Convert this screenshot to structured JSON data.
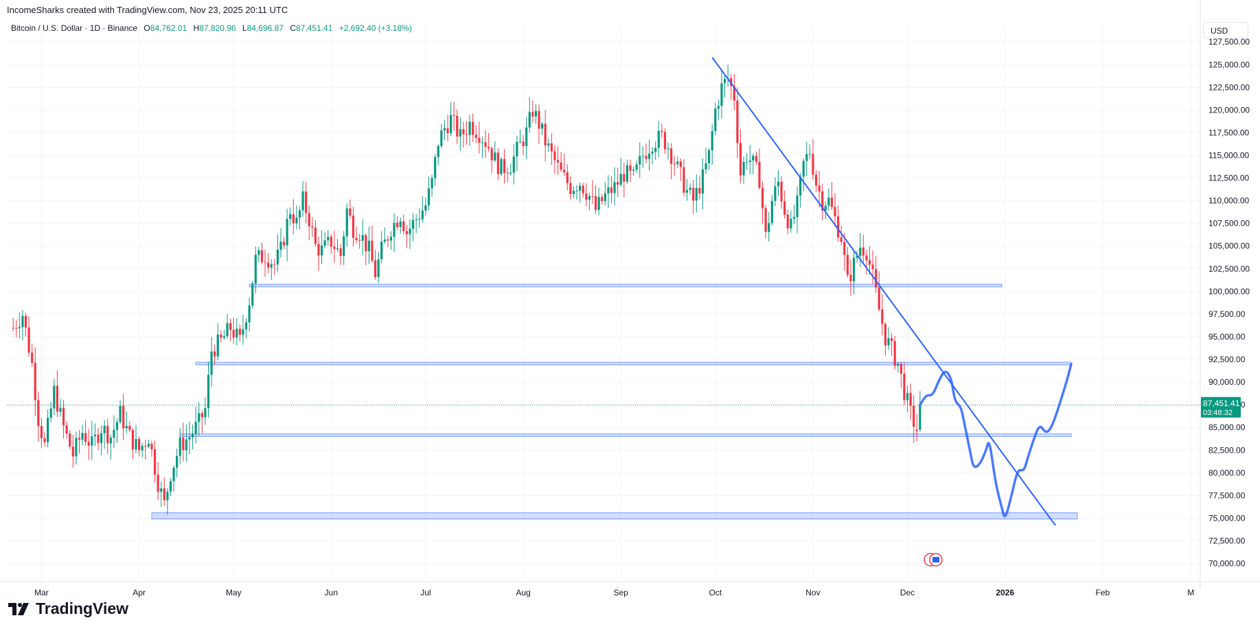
{
  "header": {
    "published_by": "IncomeSharks created with TradingView.com, Nov 23, 2025 20:11 UTC"
  },
  "legend": {
    "symbol": "Bitcoin / U.S. Dollar · 1D · Binance",
    "open_label": "O",
    "open": "84,762.01",
    "high_label": "H",
    "high": "87,820.96",
    "low_label": "L",
    "low": "84,696.87",
    "close_label": "C",
    "close": "87,451.41",
    "change": "+2,692.40 (+3.18%)"
  },
  "currency_button": "USD",
  "brand": {
    "name": "TradingView",
    "icon": "tradingview-logo-icon"
  },
  "colors": {
    "up": "#089981",
    "down": "#F23645",
    "drawing": "#2962FF",
    "zone": "#2962FF"
  },
  "chart_data": {
    "type": "candlestick",
    "title": "Bitcoin / U.S. Dollar · 1D · Binance",
    "ylim": [
      68000,
      128500
    ],
    "y_ticks": [
      "127,500.00",
      "125,000.00",
      "122,500.00",
      "120,000.00",
      "117,500.00",
      "115,000.00",
      "112,500.00",
      "110,000.00",
      "107,500.00",
      "105,000.00",
      "102,500.00",
      "100,000.00",
      "97,500.00",
      "95,000.00",
      "92,500.00",
      "90,000.00",
      "87,500.00",
      "85,000.00",
      "82,500.00",
      "80,000.00",
      "77,500.00",
      "75,000.00",
      "72,500.00",
      "70,000.00"
    ],
    "y_tick_values": [
      127500,
      125000,
      122500,
      120000,
      117500,
      115000,
      112500,
      110000,
      107500,
      105000,
      102500,
      100000,
      97500,
      95000,
      92500,
      90000,
      87500,
      85000,
      82500,
      80000,
      77500,
      75000,
      72500,
      70000
    ],
    "x_ticks": [
      {
        "label": "Mar",
        "day": 9,
        "bold": false
      },
      {
        "label": "Apr",
        "day": 40,
        "bold": false
      },
      {
        "label": "May",
        "day": 70,
        "bold": false
      },
      {
        "label": "Jun",
        "day": 101,
        "bold": false
      },
      {
        "label": "Jul",
        "day": 131,
        "bold": false
      },
      {
        "label": "Aug",
        "day": 162,
        "bold": false
      },
      {
        "label": "Sep",
        "day": 193,
        "bold": false
      },
      {
        "label": "Oct",
        "day": 223,
        "bold": false
      },
      {
        "label": "Nov",
        "day": 254,
        "bold": false
      },
      {
        "label": "Dec",
        "day": 284,
        "bold": false
      },
      {
        "label": "2026",
        "day": 315,
        "bold": true
      },
      {
        "label": "Feb",
        "day": 346,
        "bold": false
      },
      {
        "label": "M",
        "day": 374,
        "bold": false
      }
    ],
    "x_range": [
      -2,
      377
    ],
    "price_anchors": [
      [
        0,
        96000
      ],
      [
        3,
        97500
      ],
      [
        6,
        92000
      ],
      [
        8,
        86000
      ],
      [
        10,
        83000
      ],
      [
        13,
        89000
      ],
      [
        16,
        85000
      ],
      [
        19,
        82000
      ],
      [
        22,
        84500
      ],
      [
        25,
        83000
      ],
      [
        28,
        85000
      ],
      [
        31,
        84000
      ],
      [
        34,
        86500
      ],
      [
        37,
        84000
      ],
      [
        40,
        82500
      ],
      [
        43,
        84000
      ],
      [
        46,
        79000
      ],
      [
        48,
        76500
      ],
      [
        50,
        80000
      ],
      [
        53,
        83000
      ],
      [
        56,
        84000
      ],
      [
        59,
        85500
      ],
      [
        61,
        87000
      ],
      [
        63,
        93500
      ],
      [
        66,
        94500
      ],
      [
        69,
        96000
      ],
      [
        72,
        94500
      ],
      [
        75,
        99000
      ],
      [
        77,
        103500
      ],
      [
        80,
        104000
      ],
      [
        83,
        103000
      ],
      [
        85,
        104500
      ],
      [
        88,
        109000
      ],
      [
        90,
        107500
      ],
      [
        92,
        110000
      ],
      [
        94,
        108000
      ],
      [
        96,
        105000
      ],
      [
        98,
        104500
      ],
      [
        101,
        105500
      ],
      [
        104,
        104000
      ],
      [
        106,
        109000
      ],
      [
        108,
        107000
      ],
      [
        110,
        106500
      ],
      [
        113,
        104500
      ],
      [
        115,
        102000
      ],
      [
        117,
        104500
      ],
      [
        120,
        107000
      ],
      [
        123,
        108500
      ],
      [
        125,
        106500
      ],
      [
        128,
        108000
      ],
      [
        131,
        109500
      ],
      [
        133,
        112000
      ],
      [
        135,
        116500
      ],
      [
        137,
        118000
      ],
      [
        139,
        119000
      ],
      [
        142,
        117000
      ],
      [
        145,
        118500
      ],
      [
        148,
        117500
      ],
      [
        151,
        116000
      ],
      [
        153,
        114500
      ],
      [
        155,
        113500
      ],
      [
        158,
        114000
      ],
      [
        160,
        115500
      ],
      [
        163,
        117500
      ],
      [
        165,
        120000
      ],
      [
        167,
        118500
      ],
      [
        169,
        116500
      ],
      [
        171,
        115000
      ],
      [
        174,
        113000
      ],
      [
        177,
        111500
      ],
      [
        180,
        112000
      ],
      [
        183,
        110500
      ],
      [
        185,
        109000
      ],
      [
        188,
        110500
      ],
      [
        191,
        111500
      ],
      [
        194,
        113000
      ],
      [
        197,
        112500
      ],
      [
        200,
        115000
      ],
      [
        203,
        116500
      ],
      [
        206,
        117000
      ],
      [
        208,
        116000
      ],
      [
        211,
        113500
      ],
      [
        214,
        111000
      ],
      [
        216,
        110000
      ],
      [
        219,
        112500
      ],
      [
        221,
        115000
      ],
      [
        223,
        120000
      ],
      [
        225,
        122500
      ],
      [
        227,
        123500
      ],
      [
        229,
        121500
      ],
      [
        231,
        113000
      ],
      [
        233,
        115000
      ],
      [
        235,
        114000
      ],
      [
        237,
        112500
      ],
      [
        239,
        106000
      ],
      [
        241,
        110000
      ],
      [
        243,
        112000
      ],
      [
        245,
        109000
      ],
      [
        247,
        107000
      ],
      [
        249,
        109500
      ],
      [
        251,
        114000
      ],
      [
        253,
        115500
      ],
      [
        255,
        112000
      ],
      [
        257,
        110000
      ],
      [
        259,
        110000
      ],
      [
        261,
        108000
      ],
      [
        263,
        106000
      ],
      [
        265,
        101000
      ],
      [
        267,
        103000
      ],
      [
        269,
        105000
      ],
      [
        271,
        104500
      ],
      [
        273,
        101500
      ],
      [
        275,
        98000
      ],
      [
        277,
        95000
      ],
      [
        279,
        93500
      ],
      [
        281,
        92000
      ],
      [
        283,
        89000
      ],
      [
        285,
        86500
      ],
      [
        287,
        84762
      ],
      [
        288,
        87451
      ]
    ],
    "current_price_label": "87,451.41",
    "countdown": "03:48:32",
    "current_price": 87451.41,
    "support_zones": [
      {
        "d0": 75,
        "d1": 314,
        "y_top": 100800,
        "y_bot": 100500
      },
      {
        "d0": 58,
        "d1": 336,
        "y_top": 92200,
        "y_bot": 91900
      },
      {
        "d0": 53,
        "d1": 336,
        "y_top": 84300,
        "y_bot": 84000
      },
      {
        "d0": 44,
        "d1": 338,
        "y_top": 75600,
        "y_bot": 74900
      }
    ],
    "trendline": {
      "d0": 222,
      "p0": 125800,
      "d1": 331,
      "p1": 74200
    },
    "projection": [
      [
        288,
        87500
      ],
      [
        290,
        88600
      ],
      [
        292,
        88500
      ],
      [
        294,
        90200
      ],
      [
        296,
        91400
      ],
      [
        298,
        90400
      ],
      [
        299,
        87900
      ],
      [
        301,
        87300
      ],
      [
        302,
        85600
      ],
      [
        304,
        82200
      ],
      [
        305,
        80500
      ],
      [
        307,
        80900
      ],
      [
        309,
        82500
      ],
      [
        310,
        83800
      ],
      [
        312,
        78800
      ],
      [
        314,
        76100
      ],
      [
        315,
        74800
      ],
      [
        317,
        77400
      ],
      [
        319,
        80400
      ],
      [
        321,
        80200
      ],
      [
        322,
        81400
      ],
      [
        324,
        83600
      ],
      [
        326,
        85400
      ],
      [
        328,
        84300
      ],
      [
        330,
        85100
      ],
      [
        333,
        88300
      ],
      [
        335,
        90600
      ],
      [
        336,
        92000
      ]
    ]
  }
}
